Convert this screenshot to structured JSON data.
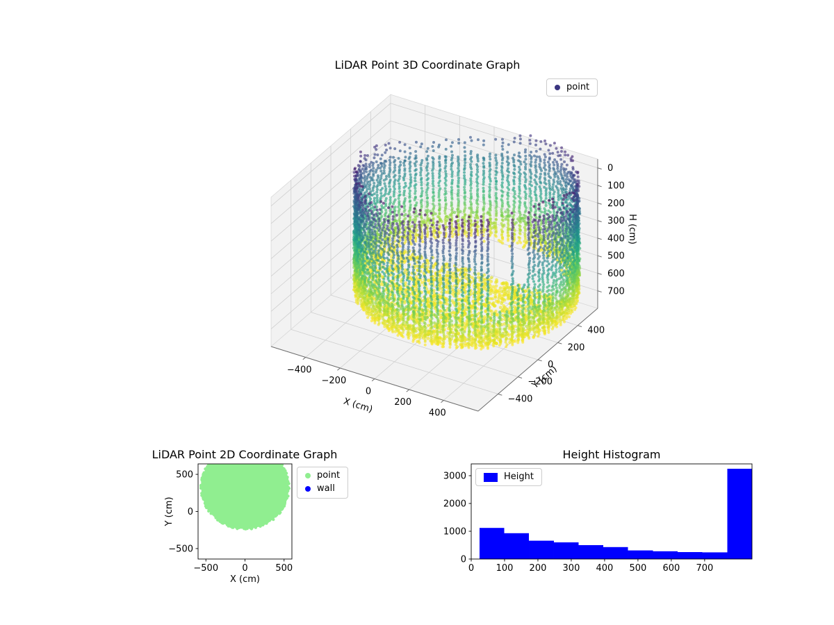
{
  "figure": {
    "background": "#ffffff"
  },
  "chart_data": [
    {
      "id": "lidar3d",
      "type": "scatter",
      "projection": "3d",
      "title": "LiDAR Point 3D Coordinate Graph",
      "xlabel": "X (cm)",
      "ylabel": "Y (cm)",
      "zlabel": "H (cm)",
      "xlim": [
        -600,
        600
      ],
      "ylim": [
        -600,
        600
      ],
      "zlim": [
        -50,
        800
      ],
      "z_axis_inverted": true,
      "x_ticks": [
        -400,
        -200,
        0,
        200,
        400
      ],
      "y_ticks": [
        -400,
        -200,
        0,
        200,
        400
      ],
      "z_ticks": [
        0,
        100,
        200,
        300,
        400,
        500,
        600,
        700
      ],
      "legend": {
        "entries": [
          {
            "label": "point",
            "color": "#3b3580"
          }
        ],
        "location": "upper right"
      },
      "colormap": "viridis",
      "marker_alpha": 0.65,
      "point_cloud": {
        "shape": "cylindrical room scan, points colored by height",
        "center_xy": [
          0,
          325
        ],
        "radius_cm": 560,
        "height_range_cm": [
          0,
          760
        ],
        "wall_columns": 110,
        "rim_top_range_cm": [
          25,
          330
        ],
        "doorway_gaps": [
          {
            "theta": [
              5.47,
              5.62
            ],
            "open_to": 560
          },
          {
            "theta": [
              5.68,
              5.78
            ],
            "open_to": 430
          }
        ],
        "floor_points": 1700,
        "color_by": "height"
      }
    },
    {
      "id": "lidar2d",
      "type": "scatter",
      "title": "LiDAR Point 2D Coordinate Graph",
      "xlabel": "X (cm)",
      "ylabel": "Y (cm)",
      "xlim": [
        -600,
        600
      ],
      "ylim": [
        -641,
        641
      ],
      "x_ticks": [
        -500,
        0,
        500
      ],
      "y_ticks": [
        -500,
        0,
        500
      ],
      "legend": {
        "entries": [
          {
            "label": "point",
            "color": "#90ee90"
          },
          {
            "label": "wall",
            "color": "#0000ff"
          }
        ],
        "location": "upper right"
      },
      "disc": {
        "center": [
          0,
          325
        ],
        "radius": 560,
        "color": "#90ee90"
      }
    },
    {
      "id": "height_histogram",
      "type": "bar",
      "title": "Height Histogram",
      "xlim": [
        0,
        842
      ],
      "ylim": [
        0,
        3425
      ],
      "x_ticks": [
        0,
        100,
        200,
        300,
        400,
        500,
        600,
        700
      ],
      "y_ticks": [
        0,
        1000,
        2000,
        3000
      ],
      "legend": {
        "entries": [
          {
            "label": "Height",
            "color": "#0000ff"
          }
        ],
        "location": "upper left"
      },
      "bar_color": "#0000ff",
      "bin_edges": [
        25,
        99,
        173,
        248,
        322,
        396,
        470,
        545,
        619,
        693,
        768,
        842
      ],
      "counts": [
        1120,
        930,
        660,
        600,
        500,
        430,
        310,
        280,
        250,
        240,
        3250
      ]
    }
  ]
}
